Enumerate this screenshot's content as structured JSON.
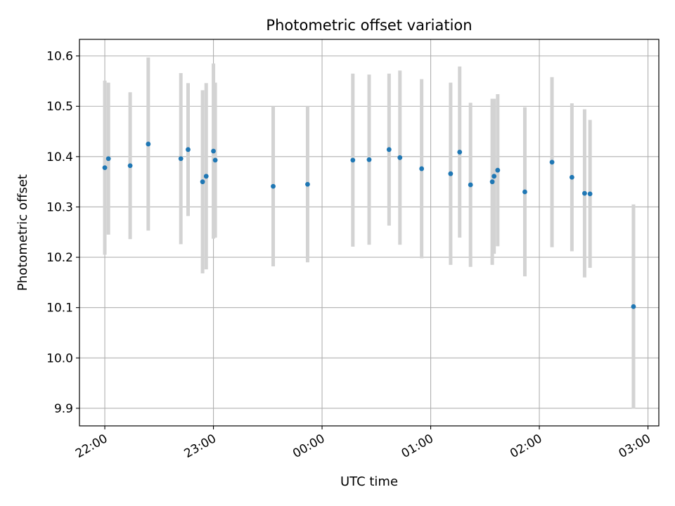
{
  "chart_data": {
    "type": "scatter",
    "title": "Photometric offset variation",
    "xlabel": "UTC time",
    "ylabel": "Photometric offset",
    "x_unit": "UTC time (HH:MM, night crossing midnight)",
    "xlim": [
      "21:46",
      "03:06"
    ],
    "ylim": [
      9.865,
      10.633
    ],
    "x_ticks": [
      "22:00",
      "23:00",
      "00:00",
      "01:00",
      "02:00",
      "03:00"
    ],
    "y_ticks": [
      "9.9",
      "10.0",
      "10.1",
      "10.2",
      "10.3",
      "10.4",
      "10.5",
      "10.6"
    ],
    "grid": true,
    "marker_color": "#1f77b4",
    "errorbar_color": "#d3d3d3",
    "points": [
      {
        "x": "22:00",
        "y": 10.378,
        "err": 0.173
      },
      {
        "x": "22:02",
        "y": 10.396,
        "err": 0.151
      },
      {
        "x": "22:14",
        "y": 10.382,
        "err": 0.146
      },
      {
        "x": "22:24",
        "y": 10.425,
        "err": 0.172
      },
      {
        "x": "22:42",
        "y": 10.396,
        "err": 0.17
      },
      {
        "x": "22:46",
        "y": 10.414,
        "err": 0.132
      },
      {
        "x": "22:54",
        "y": 10.35,
        "err": 0.182
      },
      {
        "x": "22:56",
        "y": 10.361,
        "err": 0.185
      },
      {
        "x": "23:00",
        "y": 10.411,
        "err": 0.174
      },
      {
        "x": "23:01",
        "y": 10.393,
        "err": 0.154
      },
      {
        "x": "23:33",
        "y": 10.341,
        "err": 0.159
      },
      {
        "x": "23:52",
        "y": 10.345,
        "err": 0.155
      },
      {
        "x": "00:17",
        "y": 10.393,
        "err": 0.172
      },
      {
        "x": "00:26",
        "y": 10.394,
        "err": 0.169
      },
      {
        "x": "00:37",
        "y": 10.414,
        "err": 0.151
      },
      {
        "x": "00:43",
        "y": 10.398,
        "err": 0.173
      },
      {
        "x": "00:55",
        "y": 10.376,
        "err": 0.178
      },
      {
        "x": "01:11",
        "y": 10.366,
        "err": 0.181
      },
      {
        "x": "01:16",
        "y": 10.409,
        "err": 0.17
      },
      {
        "x": "01:22",
        "y": 10.344,
        "err": 0.163
      },
      {
        "x": "01:34",
        "y": 10.35,
        "err": 0.165
      },
      {
        "x": "01:35",
        "y": 10.361,
        "err": 0.154
      },
      {
        "x": "01:37",
        "y": 10.373,
        "err": 0.151
      },
      {
        "x": "01:52",
        "y": 10.33,
        "err": 0.168
      },
      {
        "x": "02:07",
        "y": 10.389,
        "err": 0.169
      },
      {
        "x": "02:18",
        "y": 10.359,
        "err": 0.147
      },
      {
        "x": "02:25",
        "y": 10.327,
        "err": 0.167
      },
      {
        "x": "02:28",
        "y": 10.326,
        "err": 0.147
      },
      {
        "x": "02:52",
        "y": 10.102,
        "err": 0.203
      }
    ]
  }
}
